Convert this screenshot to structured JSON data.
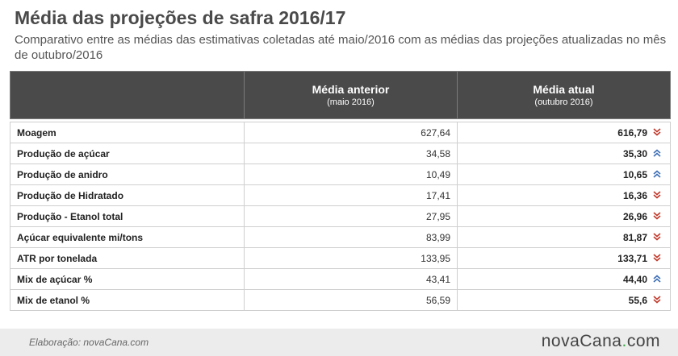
{
  "chart_data": {
    "type": "table",
    "title": "Média das projeções de safra 2016/17",
    "subtitle": "Comparativo entre as médias das estimativas coletadas até maio/2016 com as médias das projeções atualizadas no mês de outubro/2016",
    "columns": [
      {
        "label": "Média anterior",
        "sub": "(maio 2016)"
      },
      {
        "label": "Média atual",
        "sub": "(outubro 2016)"
      }
    ],
    "rows": [
      {
        "label": "Moagem",
        "prev": "627,64",
        "curr": "616,79",
        "trend": "down"
      },
      {
        "label": "Produção de açúcar",
        "prev": "34,58",
        "curr": "35,30",
        "trend": "up"
      },
      {
        "label": "Produção de anidro",
        "prev": "10,49",
        "curr": "10,65",
        "trend": "up"
      },
      {
        "label": "Produção de Hidratado",
        "prev": "17,41",
        "curr": "16,36",
        "trend": "down"
      },
      {
        "label": "Produção - Etanol total",
        "prev": "27,95",
        "curr": "26,96",
        "trend": "down"
      },
      {
        "label": "Açúcar equivalente mi/tons",
        "prev": "83,99",
        "curr": "81,87",
        "trend": "down"
      },
      {
        "label": "ATR por tonelada",
        "prev": "133,95",
        "curr": "133,71",
        "trend": "down"
      },
      {
        "label": "Mix de açúcar %",
        "prev": "43,41",
        "curr": "44,40",
        "trend": "up"
      },
      {
        "label": "Mix de etanol %",
        "prev": "56,59",
        "curr": "55,6",
        "trend": "down"
      }
    ]
  },
  "colors": {
    "header_bg": "#4a4a4a",
    "up": "#3d6fb6",
    "down": "#c0392b",
    "logo_accent": "#39a845"
  },
  "icons": {
    "up": "double-chevron-up-icon",
    "down": "double-chevron-down-icon"
  },
  "footer": {
    "credit": "Elaboração: novaCana.com",
    "logo_main": "novaCana",
    "logo_dot": ".",
    "logo_tld": "com"
  }
}
